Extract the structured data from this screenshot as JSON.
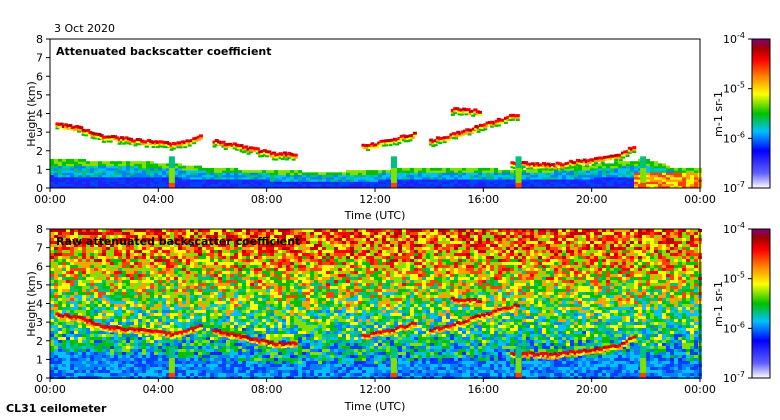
{
  "date_label": "3 Oct 2020",
  "instrument_label": "CL31 ceilometer",
  "chart_data": [
    {
      "type": "heatmap",
      "title": "Attenuated backscatter coefficient",
      "xlabel": "Time (UTC)",
      "ylabel": "Height (km)",
      "x_ticks": [
        "00:00",
        "04:00",
        "08:00",
        "12:00",
        "16:00",
        "20:00",
        "00:00"
      ],
      "x_range_hours": [
        0,
        24
      ],
      "y_ticks": [
        "0",
        "1",
        "2",
        "3",
        "4",
        "5",
        "6",
        "7",
        "8"
      ],
      "ylim": [
        0,
        8
      ],
      "colorbar": {
        "label": "m-1 sr-1",
        "ticks": [
          "10-7",
          "10-6",
          "10-5",
          "10-4"
        ],
        "log_range": [
          -7,
          -4
        ],
        "colors": [
          "#ffffff",
          "#0000ff",
          "#00c0ff",
          "#00c000",
          "#ffff00",
          "#ff8000",
          "#ff0000",
          "#a00000",
          "#800080"
        ]
      },
      "boundary_layer_top_km": [
        [
          0,
          1.5
        ],
        [
          2,
          1.4
        ],
        [
          4.3,
          1.3
        ],
        [
          4.8,
          1.2
        ],
        [
          6,
          1.0
        ],
        [
          8,
          0.9
        ],
        [
          10,
          0.8
        ],
        [
          12,
          0.9
        ],
        [
          13,
          1.0
        ],
        [
          16,
          1.0
        ],
        [
          17,
          0.9
        ],
        [
          20,
          1.2
        ],
        [
          22,
          1.5
        ],
        [
          23,
          1.0
        ],
        [
          24,
          1.0
        ]
      ],
      "cloud_layers": [
        {
          "name": "early-cloud",
          "points": [
            [
              0.2,
              3.4
            ],
            [
              1,
              3.2
            ],
            [
              2,
              2.7
            ],
            [
              3.5,
              2.5
            ],
            [
              4.5,
              2.3
            ],
            [
              5.5,
              2.7
            ]
          ]
        },
        {
          "name": "morning-cloud",
          "points": [
            [
              6,
              2.5
            ],
            [
              7,
              2.2
            ],
            [
              8.2,
              1.8
            ],
            [
              9,
              1.8
            ]
          ]
        },
        {
          "name": "midday-cloud",
          "points": [
            [
              11.5,
              2.2
            ],
            [
              12.5,
              2.5
            ],
            [
              13.4,
              2.9
            ]
          ]
        },
        {
          "name": "afternoon-cloud",
          "points": [
            [
              14,
              2.5
            ],
            [
              15,
              2.9
            ],
            [
              16.5,
              3.6
            ],
            [
              17.2,
              3.9
            ]
          ]
        },
        {
          "name": "evening-cloud",
          "points": [
            [
              17,
              1.3
            ],
            [
              18.5,
              1.2
            ],
            [
              20,
              1.5
            ],
            [
              21,
              1.7
            ],
            [
              21.5,
              2.2
            ]
          ]
        },
        {
          "name": "upper-cloud",
          "points": [
            [
              14.8,
              4.2
            ],
            [
              15.8,
              4.1
            ]
          ]
        }
      ],
      "precipitation_fall_hours": [
        4.5,
        12.7,
        17.3,
        21.9
      ]
    },
    {
      "type": "heatmap",
      "title": "Raw attenuated backscatter coefficient",
      "xlabel": "Time (UTC)",
      "ylabel": "Height (km)",
      "x_ticks": [
        "00:00",
        "04:00",
        "08:00",
        "12:00",
        "16:00",
        "20:00",
        "00:00"
      ],
      "x_range_hours": [
        0,
        24
      ],
      "y_ticks": [
        "0",
        "1",
        "2",
        "3",
        "4",
        "5",
        "6",
        "7",
        "8"
      ],
      "ylim": [
        0,
        8
      ],
      "colorbar": {
        "label": "m-1 sr-1",
        "ticks": [
          "10-7",
          "10-6",
          "10-5",
          "10-4"
        ],
        "log_range": [
          -7,
          -4
        ]
      },
      "noise_background": true
    }
  ]
}
